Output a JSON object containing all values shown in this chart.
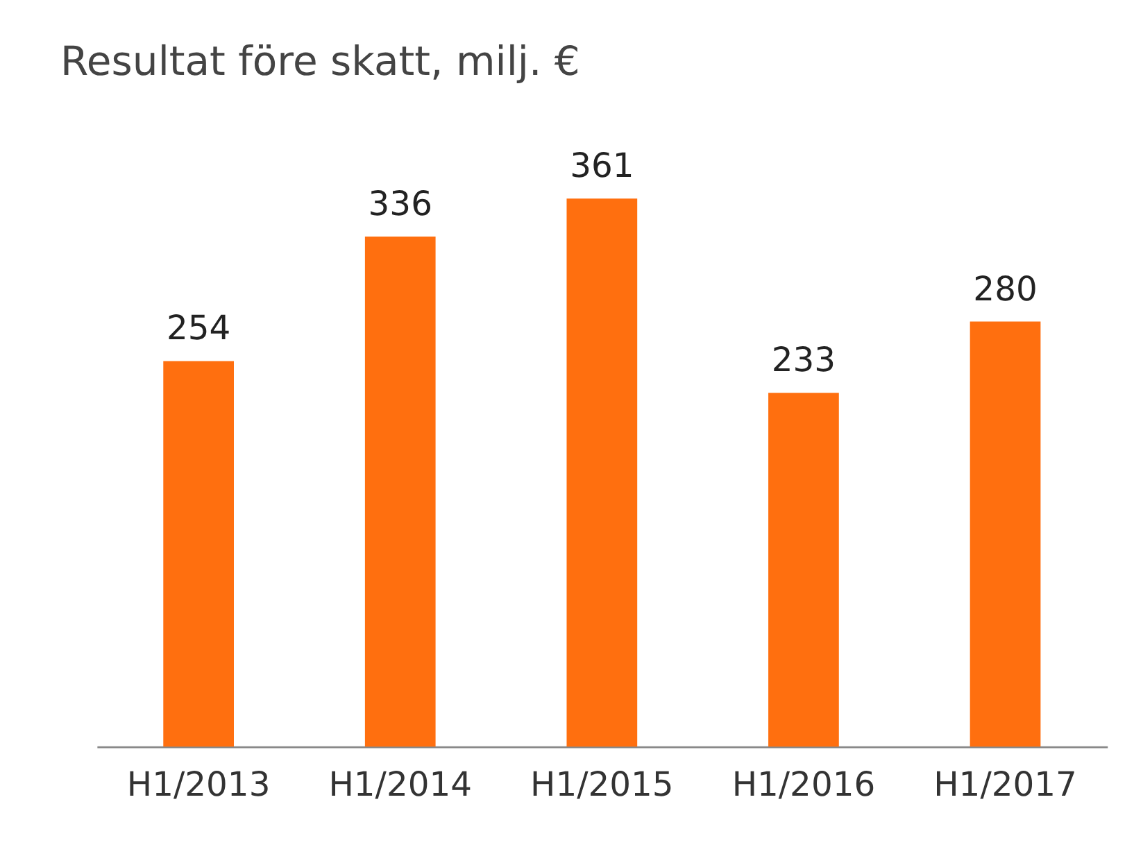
{
  "chart_data": {
    "type": "bar",
    "title": "Resultat före skatt, milj. €",
    "categories": [
      "H1/2013",
      "H1/2014",
      "H1/2015",
      "H1/2016",
      "H1/2017"
    ],
    "values": [
      254,
      336,
      361,
      233,
      280
    ],
    "color": "#ff6f0f",
    "data_labels": true,
    "grid": false,
    "tick_labels": "x"
  }
}
